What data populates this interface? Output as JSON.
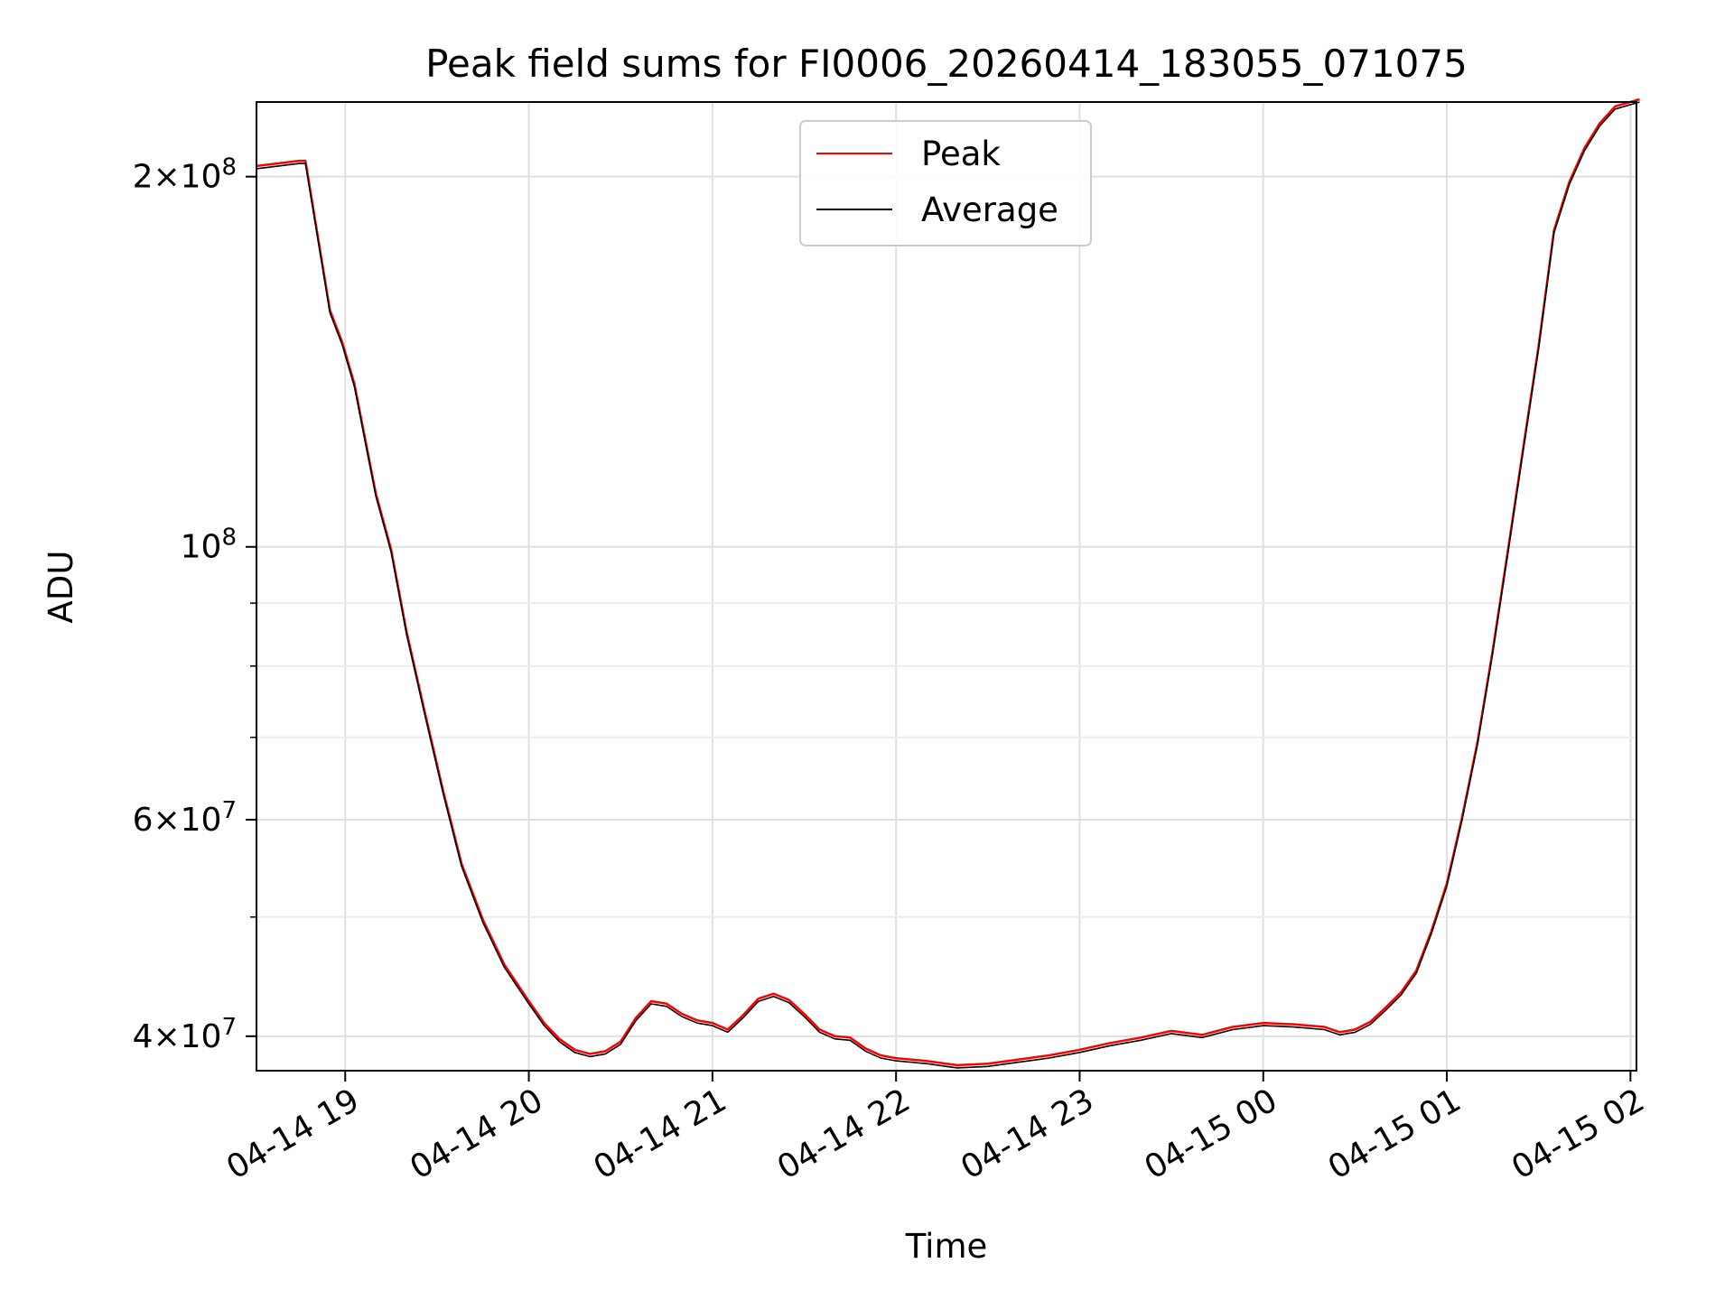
{
  "chart_data": {
    "type": "line",
    "title": "Peak field sums for FI0006_20260414_183055_071075",
    "xlabel": "Time",
    "ylabel": "ADU",
    "yscale": "log",
    "grid": true,
    "legend_position": "top-center",
    "xlim": [
      "04-14 18:31",
      "04-15 02:03"
    ],
    "ylim": [
      37500000,
      230000000
    ],
    "x_ticks": [
      "04-14 19",
      "04-14 20",
      "04-14 21",
      "04-14 22",
      "04-14 23",
      "04-15 00",
      "04-15 01",
      "04-15 02"
    ],
    "y_ticks": [
      {
        "value": 40000000,
        "base": "4",
        "exp": "7"
      },
      {
        "value": 60000000,
        "base": "6",
        "exp": "7"
      },
      {
        "value": 100000000,
        "base": "",
        "exp": "8"
      },
      {
        "value": 200000000,
        "base": "2",
        "exp": "8"
      }
    ],
    "series": [
      {
        "name": "Peak",
        "color": "#ff0000"
      },
      {
        "name": "Average",
        "color": "#000000"
      }
    ],
    "points": [
      [
        "04-14 18:31",
        203000000
      ],
      [
        "04-14 18:45",
        205000000
      ],
      [
        "04-14 18:47",
        205000000
      ],
      [
        "04-14 18:52",
        172000000
      ],
      [
        "04-14 18:55",
        155000000
      ],
      [
        "04-14 18:59",
        146000000
      ],
      [
        "04-14 19:03",
        135000000
      ],
      [
        "04-14 19:10",
        110000000
      ],
      [
        "04-14 19:15",
        99000000
      ],
      [
        "04-14 19:20",
        85000000
      ],
      [
        "04-14 19:26",
        73000000
      ],
      [
        "04-14 19:32",
        63000000
      ],
      [
        "04-14 19:38",
        55000000
      ],
      [
        "04-14 19:45",
        49500000
      ],
      [
        "04-14 19:52",
        45500000
      ],
      [
        "04-14 20:00",
        42500000
      ],
      [
        "04-14 20:05",
        40800000
      ],
      [
        "04-14 20:10",
        39600000
      ],
      [
        "04-14 20:15",
        38800000
      ],
      [
        "04-14 20:20",
        38500000
      ],
      [
        "04-14 20:25",
        38700000
      ],
      [
        "04-14 20:30",
        39400000
      ],
      [
        "04-14 20:35",
        41200000
      ],
      [
        "04-14 20:40",
        42500000
      ],
      [
        "04-14 20:45",
        42300000
      ],
      [
        "04-14 20:50",
        41500000
      ],
      [
        "04-14 20:55",
        41000000
      ],
      [
        "04-14 21:00",
        40800000
      ],
      [
        "04-14 21:05",
        40300000
      ],
      [
        "04-14 21:10",
        41400000
      ],
      [
        "04-14 21:15",
        42700000
      ],
      [
        "04-14 21:20",
        43100000
      ],
      [
        "04-14 21:25",
        42600000
      ],
      [
        "04-14 21:30",
        41500000
      ],
      [
        "04-14 21:35",
        40300000
      ],
      [
        "04-14 21:40",
        39800000
      ],
      [
        "04-14 21:45",
        39700000
      ],
      [
        "04-14 21:50",
        38900000
      ],
      [
        "04-14 21:55",
        38400000
      ],
      [
        "04-14 22:00",
        38200000
      ],
      [
        "04-14 22:10",
        38000000
      ],
      [
        "04-14 22:20",
        37700000
      ],
      [
        "04-14 22:30",
        37800000
      ],
      [
        "04-14 22:40",
        38100000
      ],
      [
        "04-14 22:50",
        38400000
      ],
      [
        "04-14 23:00",
        38800000
      ],
      [
        "04-14 23:10",
        39300000
      ],
      [
        "04-14 23:20",
        39700000
      ],
      [
        "04-14 23:30",
        40200000
      ],
      [
        "04-14 23:40",
        39900000
      ],
      [
        "04-14 23:50",
        40500000
      ],
      [
        "04-15 00:00",
        40800000
      ],
      [
        "04-15 00:10",
        40700000
      ],
      [
        "04-15 00:20",
        40500000
      ],
      [
        "04-15 00:25",
        40100000
      ],
      [
        "04-15 00:30",
        40300000
      ],
      [
        "04-15 00:35",
        40900000
      ],
      [
        "04-15 00:40",
        42000000
      ],
      [
        "04-15 00:45",
        43200000
      ],
      [
        "04-15 00:50",
        45000000
      ],
      [
        "04-15 00:55",
        48500000
      ],
      [
        "04-15 01:00",
        53000000
      ],
      [
        "04-15 01:05",
        60000000
      ],
      [
        "04-15 01:10",
        69000000
      ],
      [
        "04-15 01:15",
        82000000
      ],
      [
        "04-15 01:20",
        99000000
      ],
      [
        "04-15 01:25",
        120000000
      ],
      [
        "04-15 01:30",
        145000000
      ],
      [
        "04-15 01:35",
        180000000
      ],
      [
        "04-15 01:40",
        197000000
      ],
      [
        "04-15 01:45",
        210000000
      ],
      [
        "04-15 01:50",
        220000000
      ],
      [
        "04-15 01:55",
        227000000
      ],
      [
        "04-15 02:03",
        230000000
      ]
    ]
  }
}
